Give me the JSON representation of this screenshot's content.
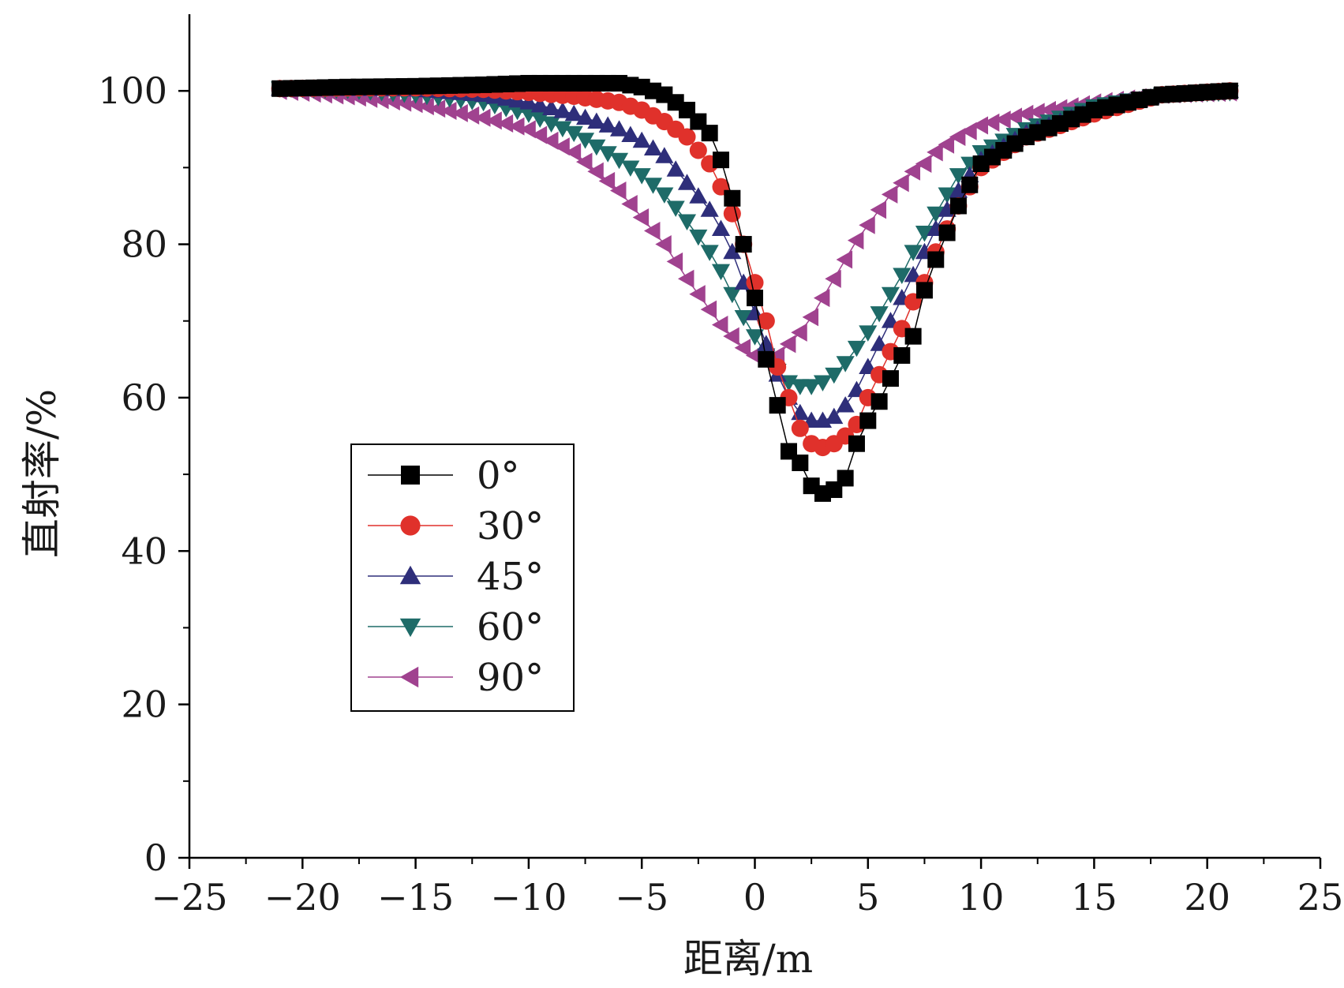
{
  "chart_data": {
    "type": "line",
    "xlabel": "距离/m",
    "ylabel": "直射率/%",
    "xlim": [
      -25,
      25
    ],
    "ylim": [
      0,
      110
    ],
    "xticks": [
      -25,
      -20,
      -15,
      -10,
      -5,
      0,
      5,
      10,
      15,
      20,
      25
    ],
    "yticks": [
      0,
      20,
      40,
      60,
      80,
      100
    ],
    "xtick_labels": [
      "−25",
      "−20",
      "−15",
      "−10",
      "−5",
      "0",
      "5",
      "10",
      "15",
      "20",
      "25"
    ],
    "ytick_labels": [
      "0",
      "20",
      "40",
      "60",
      "80",
      "100"
    ],
    "grid": false,
    "legend_position": "lower-left-center",
    "x_range": [
      -21,
      21
    ],
    "series": [
      {
        "name": "0°",
        "marker": "square",
        "color": "#000000",
        "line_color": "#000000",
        "x": [
          -21,
          -18,
          -15,
          -12,
          -10,
          -8,
          -6,
          -5,
          -4,
          -3,
          -2,
          -1.5,
          -1,
          -0.5,
          0,
          0.5,
          1,
          1.5,
          2,
          2.5,
          3,
          3.5,
          4,
          4.5,
          5,
          5.5,
          6,
          6.5,
          7,
          7.5,
          8,
          8.5,
          9,
          10,
          12,
          15,
          18,
          21
        ],
        "values": [
          100.3,
          100.5,
          100.6,
          100.8,
          101,
          101,
          101,
          100.5,
          99.5,
          97.5,
          94.5,
          91,
          86,
          80,
          73,
          65,
          59,
          53,
          51.5,
          48.5,
          47.5,
          48,
          49.5,
          54,
          57,
          59.5,
          62.5,
          65.5,
          68,
          74,
          78,
          81.5,
          85,
          90.5,
          94,
          97.5,
          99.5,
          100
        ]
      },
      {
        "name": "30°",
        "marker": "circle",
        "color": "#e0312b",
        "line_color": "#e0312b",
        "x": [
          -21,
          -18,
          -15,
          -12,
          -10,
          -8,
          -6,
          -5,
          -4,
          -3,
          -2,
          -1.5,
          -1,
          -0.5,
          0,
          0.5,
          1,
          1.5,
          2,
          2.5,
          3,
          3.5,
          4,
          4.5,
          5,
          5.5,
          6,
          6.5,
          7,
          7.5,
          8,
          8.5,
          9,
          10,
          12,
          15,
          18,
          21
        ],
        "values": [
          100.3,
          100.4,
          100.4,
          100.2,
          99.8,
          99.3,
          98.5,
          97.5,
          96,
          94,
          90.5,
          87.5,
          84,
          80,
          75,
          70,
          64,
          60,
          56,
          54,
          53.5,
          54,
          55,
          56.5,
          60,
          63,
          66,
          69,
          72.5,
          75,
          79,
          82,
          85,
          90,
          94,
          97,
          99.5,
          100
        ]
      },
      {
        "name": "45°",
        "marker": "triangle-up",
        "color": "#2e2e7a",
        "line_color": "#2e2e7a",
        "x": [
          -21,
          -18,
          -15,
          -12,
          -10,
          -8,
          -6,
          -5,
          -4,
          -3,
          -2,
          -1.5,
          -1,
          -0.5,
          0,
          0.5,
          1,
          1.5,
          2,
          2.5,
          3,
          3.5,
          4,
          4.5,
          5,
          5.5,
          6,
          6.5,
          7,
          7.5,
          8,
          8.5,
          9,
          10,
          12,
          15,
          18,
          21
        ],
        "values": [
          100.3,
          100.3,
          100.2,
          99.5,
          98.5,
          97,
          95,
          93.5,
          91.5,
          88,
          84.5,
          82,
          79,
          75,
          71,
          67,
          63,
          60,
          58,
          57,
          57,
          57.5,
          59,
          61,
          64,
          67,
          70,
          73,
          76,
          79,
          82,
          84.5,
          87,
          91,
          94.5,
          97.5,
          99.5,
          100
        ]
      },
      {
        "name": "60°",
        "marker": "triangle-down",
        "color": "#1e6b68",
        "line_color": "#1e6b68",
        "x": [
          -21,
          -18,
          -15,
          -12,
          -10,
          -8,
          -6,
          -5,
          -4,
          -3,
          -2,
          -1.5,
          -1,
          -0.5,
          0,
          0.5,
          1,
          1.5,
          2,
          2.5,
          3,
          3.5,
          4,
          4.5,
          5,
          5.5,
          6,
          6.5,
          7,
          7.5,
          8,
          8.5,
          9,
          10,
          12,
          15,
          18,
          21
        ],
        "values": [
          100.3,
          100.1,
          99.5,
          98.5,
          97,
          94.5,
          91,
          89,
          86.5,
          83,
          79,
          76.5,
          73.5,
          70.5,
          68,
          65.5,
          63.5,
          62,
          61.5,
          61.5,
          62,
          63,
          64.5,
          66.5,
          68.5,
          71,
          73.5,
          76,
          79,
          81.5,
          84,
          86.5,
          89,
          92,
          95,
          98,
          99.5,
          99.8
        ]
      },
      {
        "name": "90°",
        "marker": "triangle-left",
        "color": "#a0428f",
        "line_color": "#a0428f",
        "x": [
          -21,
          -18,
          -15,
          -12,
          -10,
          -8,
          -6,
          -5,
          -4,
          -3,
          -2,
          -1.5,
          -1,
          -0.5,
          0,
          0.5,
          1,
          1.5,
          2,
          2.5,
          3,
          3.5,
          4,
          4.5,
          5,
          5.5,
          6,
          6.5,
          7,
          7.5,
          8,
          8.5,
          9,
          10,
          12,
          15,
          18,
          21
        ],
        "values": [
          100,
          99.3,
          98.3,
          96.5,
          95,
          92,
          87,
          83.5,
          80,
          75.5,
          71.5,
          69.5,
          68,
          66.5,
          65.5,
          65,
          65.5,
          67,
          68.5,
          70.5,
          73,
          75.5,
          78,
          80.5,
          82.5,
          84.5,
          86.5,
          88,
          89.5,
          90.5,
          92,
          93,
          94,
          95.5,
          97,
          98.5,
          99.5,
          99.8
        ]
      }
    ]
  }
}
